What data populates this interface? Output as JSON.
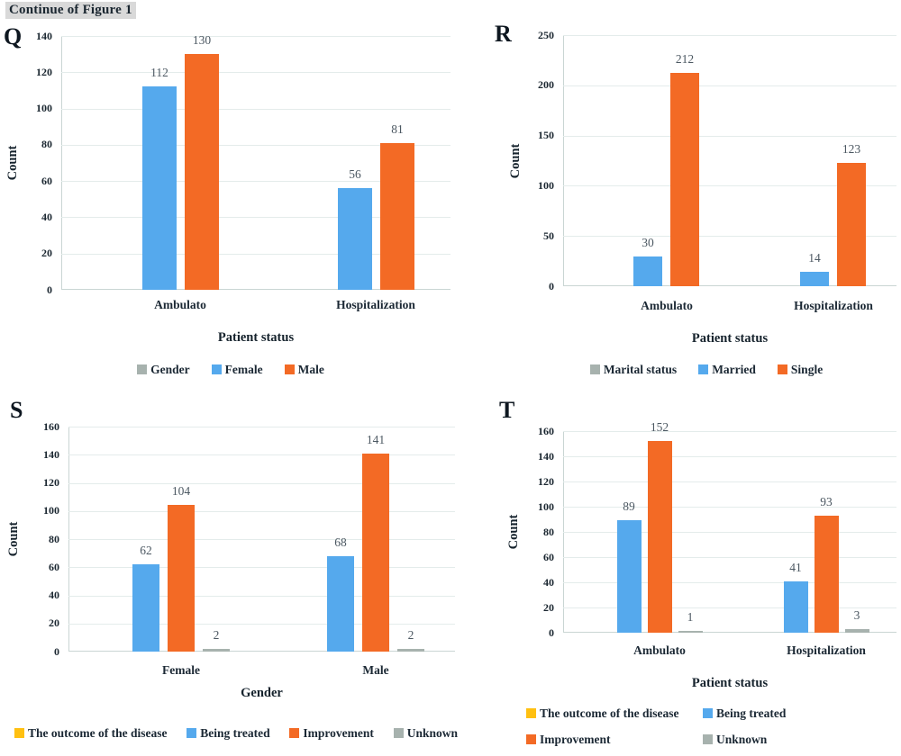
{
  "page": {
    "title": "Continue of Figure 1"
  },
  "colors": {
    "blue": "#55A9ED",
    "orange": "#F36A25",
    "gray": "#A7B2AE",
    "yellow": "#FFC011",
    "grid": "#E4ECEB",
    "axis": "#C9D5D3",
    "tick_text": "#1A2630",
    "value_label": "#4C5862",
    "title_highlight": "#D9D9D9"
  },
  "chart_data": [
    {
      "panel_label": "Q",
      "type": "bar",
      "categories": [
        "Ambulato",
        "Hospitalization"
      ],
      "series": [
        {
          "name": "Female",
          "color": "blue",
          "values": [
            112,
            56
          ]
        },
        {
          "name": "Male",
          "color": "orange",
          "values": [
            130,
            81
          ]
        }
      ],
      "legend_title": {
        "label": "Gender",
        "color": "gray"
      },
      "xlabel": "Patient status",
      "ylabel": "Count",
      "ylim": [
        0,
        140
      ],
      "yticks": [
        140,
        120,
        100,
        80,
        60,
        40,
        20,
        0
      ],
      "grid": true,
      "legend_position": "bottom"
    },
    {
      "panel_label": "R",
      "type": "bar",
      "categories": [
        "Ambulato",
        "Hospitalization"
      ],
      "series": [
        {
          "name": "Married",
          "color": "blue",
          "values": [
            30,
            14
          ]
        },
        {
          "name": "Single",
          "color": "orange",
          "values": [
            212,
            123
          ]
        }
      ],
      "legend_title": {
        "label": "Marital status",
        "color": "gray"
      },
      "xlabel": "Patient status",
      "ylabel": "Count",
      "ylim": [
        0,
        250
      ],
      "yticks": [
        250,
        200,
        150,
        100,
        50,
        0
      ],
      "grid": true,
      "legend_position": "bottom"
    },
    {
      "panel_label": "S",
      "type": "bar",
      "categories": [
        "Female",
        "Male"
      ],
      "series": [
        {
          "name": "Being treated",
          "color": "blue",
          "values": [
            62,
            68
          ]
        },
        {
          "name": "Improvement",
          "color": "orange",
          "values": [
            104,
            141
          ]
        },
        {
          "name": "Unknown",
          "color": "gray",
          "values": [
            2,
            2
          ]
        }
      ],
      "legend_title": {
        "label": "The outcome of the disease",
        "color": "yellow"
      },
      "xlabel": "Gender",
      "ylabel": "Count",
      "ylim": [
        0,
        160
      ],
      "yticks": [
        160,
        140,
        120,
        100,
        80,
        60,
        40,
        20,
        0
      ],
      "grid": true,
      "legend_position": "bottom"
    },
    {
      "panel_label": "T",
      "type": "bar",
      "categories": [
        "Ambulato",
        "Hospitalization"
      ],
      "series": [
        {
          "name": "Being treated",
          "color": "blue",
          "values": [
            89,
            41
          ]
        },
        {
          "name": "Improvement",
          "color": "orange",
          "values": [
            152,
            93
          ]
        },
        {
          "name": "Unknown",
          "color": "gray",
          "values": [
            1,
            3
          ]
        }
      ],
      "legend_title": {
        "label": "The outcome of the disease",
        "color": "yellow"
      },
      "xlabel": "Patient status",
      "ylabel": "Count",
      "ylim": [
        0,
        160
      ],
      "yticks": [
        160,
        140,
        120,
        100,
        80,
        60,
        40,
        20,
        0
      ],
      "grid": true,
      "legend_position": "bottom-two-rows"
    }
  ]
}
